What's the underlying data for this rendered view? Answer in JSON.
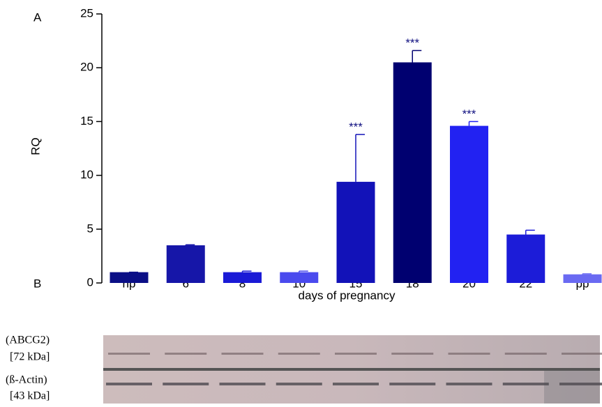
{
  "chart_data": {
    "type": "bar",
    "panel_labels": [
      "A",
      "B"
    ],
    "ylabel": "RQ",
    "xlabel": "days of pregnancy",
    "categories": [
      "np",
      "6",
      "8",
      "10",
      "15",
      "18",
      "20",
      "22",
      "pp"
    ],
    "values": [
      1.0,
      3.5,
      1.0,
      1.0,
      9.4,
      20.5,
      14.6,
      4.5,
      0.8
    ],
    "errors": [
      0,
      0.05,
      0.1,
      0.1,
      4.4,
      1.1,
      0.4,
      0.4,
      0.05
    ],
    "colors": [
      "#0b0f86",
      "#1616a8",
      "#1a1ad6",
      "#4a4aee",
      "#1212b8",
      "#000070",
      "#2222f2",
      "#1c1cd8",
      "#6a6af2"
    ],
    "significance": [
      null,
      null,
      null,
      null,
      "***",
      "***",
      "***",
      null,
      null
    ],
    "ylim": [
      0,
      25
    ],
    "yticks": [
      0,
      5,
      10,
      15,
      20,
      25
    ],
    "blot_labels": [
      "(ABCG2)",
      "[72 kDa]",
      "(ß-Actin)",
      "[43 kDa]"
    ]
  }
}
